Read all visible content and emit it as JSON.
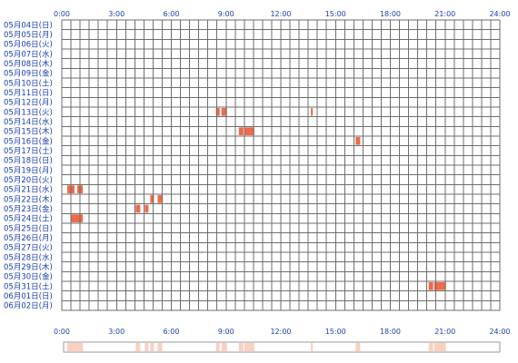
{
  "chart_data": {
    "type": "heatmap",
    "title": "",
    "xlabel": "",
    "ylabel": "",
    "x_range_hours": [
      0,
      24
    ],
    "x_ticks": [
      "0:00",
      "3:00",
      "6:00",
      "9:00",
      "12:00",
      "15:00",
      "18:00",
      "21:00",
      "24:00"
    ],
    "rows": [
      "05月04日(日)",
      "05月05日(月)",
      "05月06日(火)",
      "05月07日(水)",
      "05月08日(木)",
      "05月09日(金)",
      "05月10日(土)",
      "05月11日(日)",
      "05月12日(月)",
      "05月13日(火)",
      "05月14日(水)",
      "05月15日(木)",
      "05月16日(金)",
      "05月17日(土)",
      "05月18日(日)",
      "05月19日(月)",
      "05月20日(火)",
      "05月21日(水)",
      "05月22日(木)",
      "05月23日(金)",
      "05月24日(土)",
      "05月25日(日)",
      "05月26日(月)",
      "05月27日(火)",
      "05月28日(水)",
      "05月29日(木)",
      "05月30日(金)",
      "05月31日(土)",
      "06月01日(日)",
      "06月02日(月)"
    ],
    "activity": [
      {
        "date": "05月13日(火)",
        "start": 8.45,
        "end": 8.65
      },
      {
        "date": "05月13日(火)",
        "start": 8.75,
        "end": 9.05
      },
      {
        "date": "05月13日(火)",
        "start": 13.65,
        "end": 13.75
      },
      {
        "date": "05月15日(木)",
        "start": 9.7,
        "end": 9.95
      },
      {
        "date": "05月15日(木)",
        "start": 10.0,
        "end": 10.55
      },
      {
        "date": "05月16日(金)",
        "start": 16.1,
        "end": 16.35
      },
      {
        "date": "05月21日(水)",
        "start": 0.3,
        "end": 0.7
      },
      {
        "date": "05月21日(水)",
        "start": 0.85,
        "end": 1.15
      },
      {
        "date": "05月22日(木)",
        "start": 4.85,
        "end": 5.05
      },
      {
        "date": "05月22日(木)",
        "start": 5.25,
        "end": 5.5
      },
      {
        "date": "05月23日(金)",
        "start": 4.05,
        "end": 4.3
      },
      {
        "date": "05月23日(金)",
        "start": 4.55,
        "end": 4.75
      },
      {
        "date": "05月24日(土)",
        "start": 0.5,
        "end": 1.15
      },
      {
        "date": "05月31日(土)",
        "start": 20.1,
        "end": 20.35
      },
      {
        "date": "05月31日(土)",
        "start": 20.4,
        "end": 21.05
      }
    ],
    "colors": {
      "bar": "#ee6a48",
      "grid": "#6e6e6e",
      "label": "#1a3ea8",
      "summary_bar": "#fad0c0",
      "summary_border": "#999999"
    }
  }
}
